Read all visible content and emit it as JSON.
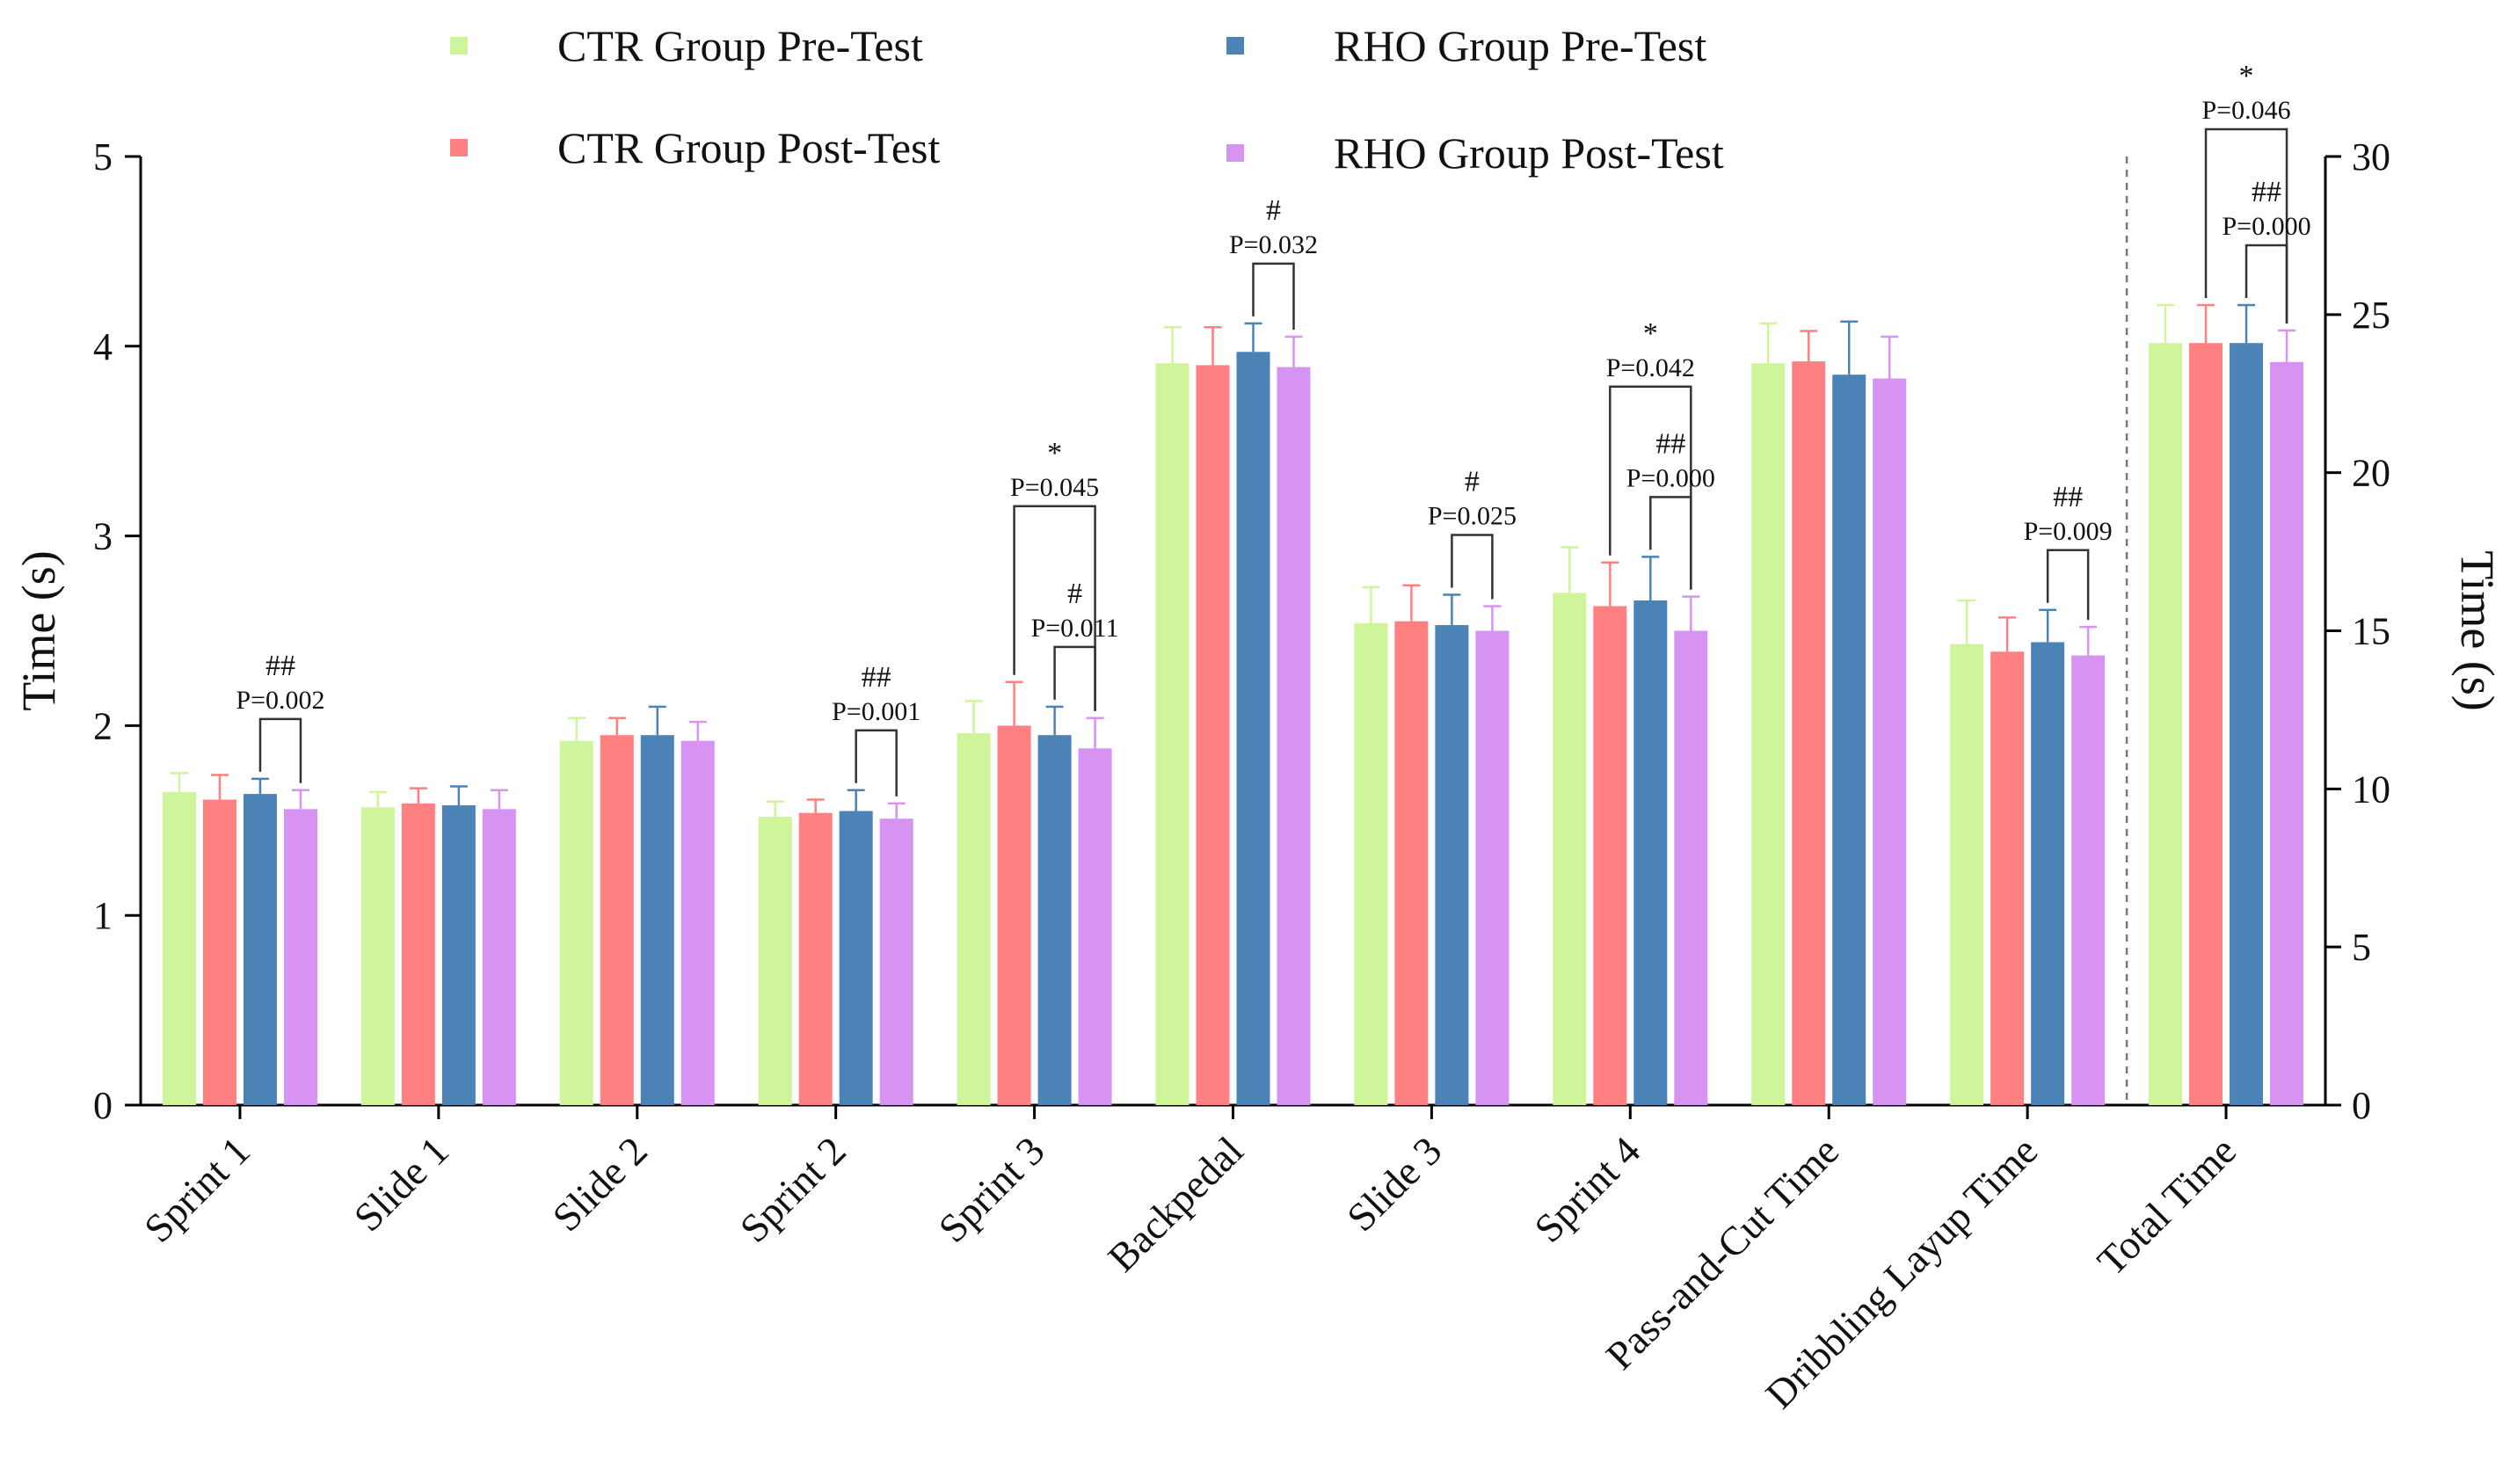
{
  "chart_data": {
    "type": "bar",
    "categories": [
      "Sprint 1",
      "Slide 1",
      "Slide 2",
      "Sprint 2",
      "Sprint 3",
      "Backpedal",
      "Slide 3",
      "Sprint 4",
      "Pass-and-Cut Time",
      "Dribbling Layup Time",
      "Total Time"
    ],
    "series": [
      {
        "name": "CTR Group Pre-Test",
        "color": "#cff59a",
        "values": [
          1.65,
          1.57,
          1.92,
          1.52,
          1.96,
          3.91,
          2.54,
          2.7,
          3.91,
          2.43,
          24.1
        ],
        "errors": [
          0.1,
          0.08,
          0.12,
          0.08,
          0.17,
          0.19,
          0.19,
          0.24,
          0.21,
          0.23,
          1.2
        ]
      },
      {
        "name": "CTR Group Post-Test",
        "color": "#ff8080",
        "values": [
          1.61,
          1.59,
          1.95,
          1.54,
          2.0,
          3.9,
          2.55,
          2.63,
          3.92,
          2.39,
          24.1
        ],
        "errors": [
          0.13,
          0.08,
          0.09,
          0.07,
          0.23,
          0.2,
          0.19,
          0.23,
          0.16,
          0.18,
          1.2
        ]
      },
      {
        "name": "RHO Group Pre-Test",
        "color": "#4b83b6",
        "values": [
          1.64,
          1.58,
          1.95,
          1.55,
          1.95,
          3.97,
          2.53,
          2.66,
          3.85,
          2.44,
          24.1
        ],
        "errors": [
          0.08,
          0.1,
          0.15,
          0.11,
          0.15,
          0.15,
          0.16,
          0.23,
          0.28,
          0.17,
          1.2
        ]
      },
      {
        "name": "RHO Group Post-Test",
        "color": "#d793f2",
        "values": [
          1.56,
          1.56,
          1.92,
          1.51,
          1.88,
          3.89,
          2.5,
          2.5,
          3.83,
          2.37,
          23.5
        ],
        "errors": [
          0.1,
          0.1,
          0.1,
          0.08,
          0.16,
          0.16,
          0.13,
          0.18,
          0.22,
          0.15,
          1.0
        ]
      }
    ],
    "title": "",
    "xlabel": "",
    "ylabel": "Time (s)",
    "ylabel_right": "Time (s)",
    "ylim": [
      0,
      5
    ],
    "ylim_right": [
      0,
      30
    ],
    "yticks": [
      "0",
      "1",
      "2",
      "3",
      "4",
      "5"
    ],
    "yticks_right": [
      "0",
      "5",
      "10",
      "15",
      "20",
      "25",
      "30"
    ],
    "right_axis_category": "Total Time",
    "legend_position": "top",
    "annotations": [
      {
        "category": "Sprint 1",
        "mark": "##",
        "p": "P=0.002",
        "between": "RHO Pre vs RHO Post"
      },
      {
        "category": "Sprint 2",
        "mark": "##",
        "p": "P=0.001",
        "between": "RHO Pre vs RHO Post"
      },
      {
        "category": "Sprint 3",
        "mark": "*",
        "p": "P=0.045",
        "between": "CTR Post vs RHO Post"
      },
      {
        "category": "Sprint 3",
        "mark": "#",
        "p": "P=0.011",
        "between": "RHO Pre vs RHO Post"
      },
      {
        "category": "Backpedal",
        "mark": "#",
        "p": "P=0.032",
        "between": "RHO Pre vs RHO Post"
      },
      {
        "category": "Slide 3",
        "mark": "#",
        "p": "P=0.025",
        "between": "RHO Pre vs RHO Post"
      },
      {
        "category": "Sprint 4",
        "mark": "*",
        "p": "P=0.042",
        "between": "CTR Post vs RHO Post"
      },
      {
        "category": "Sprint 4",
        "mark": "##",
        "p": "P=0.000",
        "between": "RHO Pre vs RHO Post"
      },
      {
        "category": "Dribbling Layup Time",
        "mark": "##",
        "p": "P=0.009",
        "between": "RHO Pre vs RHO Post"
      },
      {
        "category": "Total Time",
        "mark": "*",
        "p": "P=0.046",
        "between": "CTR Post vs RHO Post"
      },
      {
        "category": "Total Time",
        "mark": "##",
        "p": "P=0.000",
        "between": "RHO Pre vs RHO Post"
      }
    ]
  }
}
